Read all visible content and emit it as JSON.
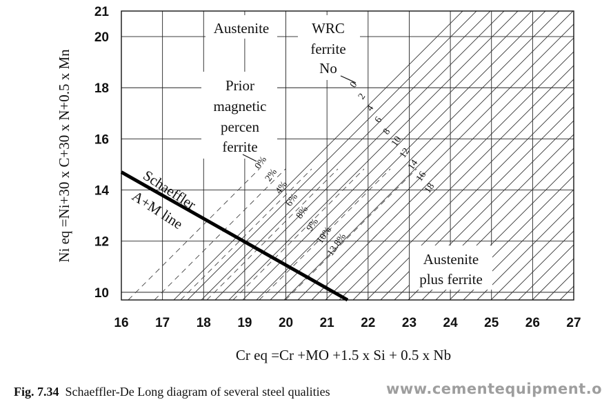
{
  "chart_data": {
    "type": "diagram",
    "xlabel": "Cr eq =Cr +MO +1.5 x Si + 0.5 x Nb",
    "ylabel": "Ni eq =Ni+30 x C+30 x N+0.5 x Mn",
    "xlim": [
      16,
      27
    ],
    "ylim": [
      9.7,
      21
    ],
    "x_ticks": [
      16,
      17,
      18,
      19,
      20,
      21,
      22,
      23,
      24,
      25,
      26,
      27
    ],
    "y_ticks": [
      10,
      12,
      14,
      16,
      18,
      20,
      21
    ],
    "grid": true,
    "schaeffler_line": {
      "name": "Schaeffler A+M line",
      "points": [
        [
          16,
          14.7
        ],
        [
          21.5,
          9.7
        ]
      ]
    },
    "prior_ferrite_labels": [
      "0%",
      "2%",
      "4%",
      "6%",
      "8%",
      "9%",
      "10%",
      "13.8%"
    ],
    "wrc_ferrite_labels": [
      "0",
      "2",
      "4",
      "6",
      "8",
      "10",
      "12",
      "14",
      "16",
      "18"
    ],
    "annotations": {
      "austenite": "Austenite",
      "wrc_line1": "WRC",
      "wrc_line2": "ferrite",
      "wrc_line3": "No",
      "prior_line1": "Prior",
      "prior_line2": "magnetic",
      "prior_line3": "percen",
      "prior_line4": "ferrite",
      "schaeffler": "Schaeffler",
      "am_line": "A+M line",
      "aus_ferrite_line1": "Austenite",
      "aus_ferrite_line2": "plus ferrite"
    }
  },
  "caption": {
    "label": "Fig. 7.34",
    "text": "Schaeffler-De Long diagram of several steel qualities"
  },
  "watermark": "www.cementequipment.org"
}
